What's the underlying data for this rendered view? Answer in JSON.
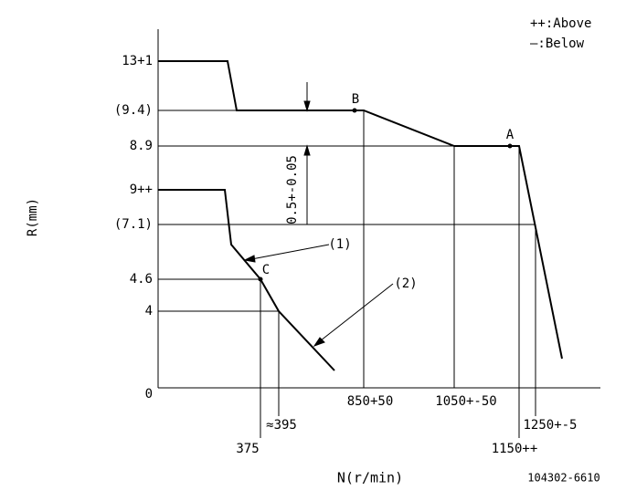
{
  "legend": [
    "++:Above",
    "—:Below"
  ],
  "y_labels": [
    "13+1",
    "(9.4)",
    "8.9",
    "9++",
    "(7.1)",
    "4.6",
    "4",
    "0"
  ],
  "x_labels": [
    "850+50",
    "1050+-50",
    "375",
    "≈395",
    "1150++",
    "1250+-5"
  ],
  "points": [
    "A",
    "B",
    "C"
  ],
  "curve_labels": [
    "(1)",
    "(2)"
  ],
  "dimension": "0.5+-0.05",
  "axis_y": "R(mm)",
  "axis_x": "N(r/min)",
  "code": "104302-6610"
}
